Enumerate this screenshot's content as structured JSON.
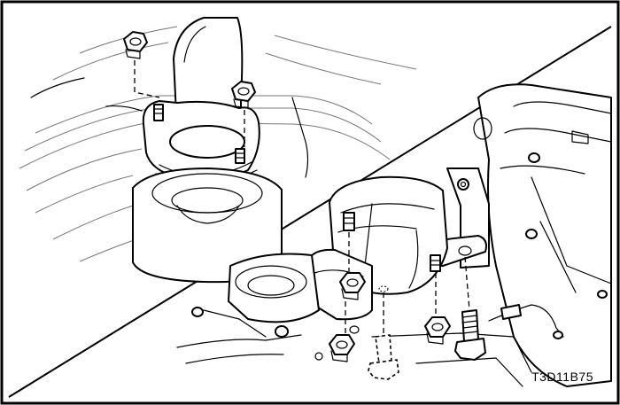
{
  "figure": {
    "reference_code": "T3D11B75"
  }
}
